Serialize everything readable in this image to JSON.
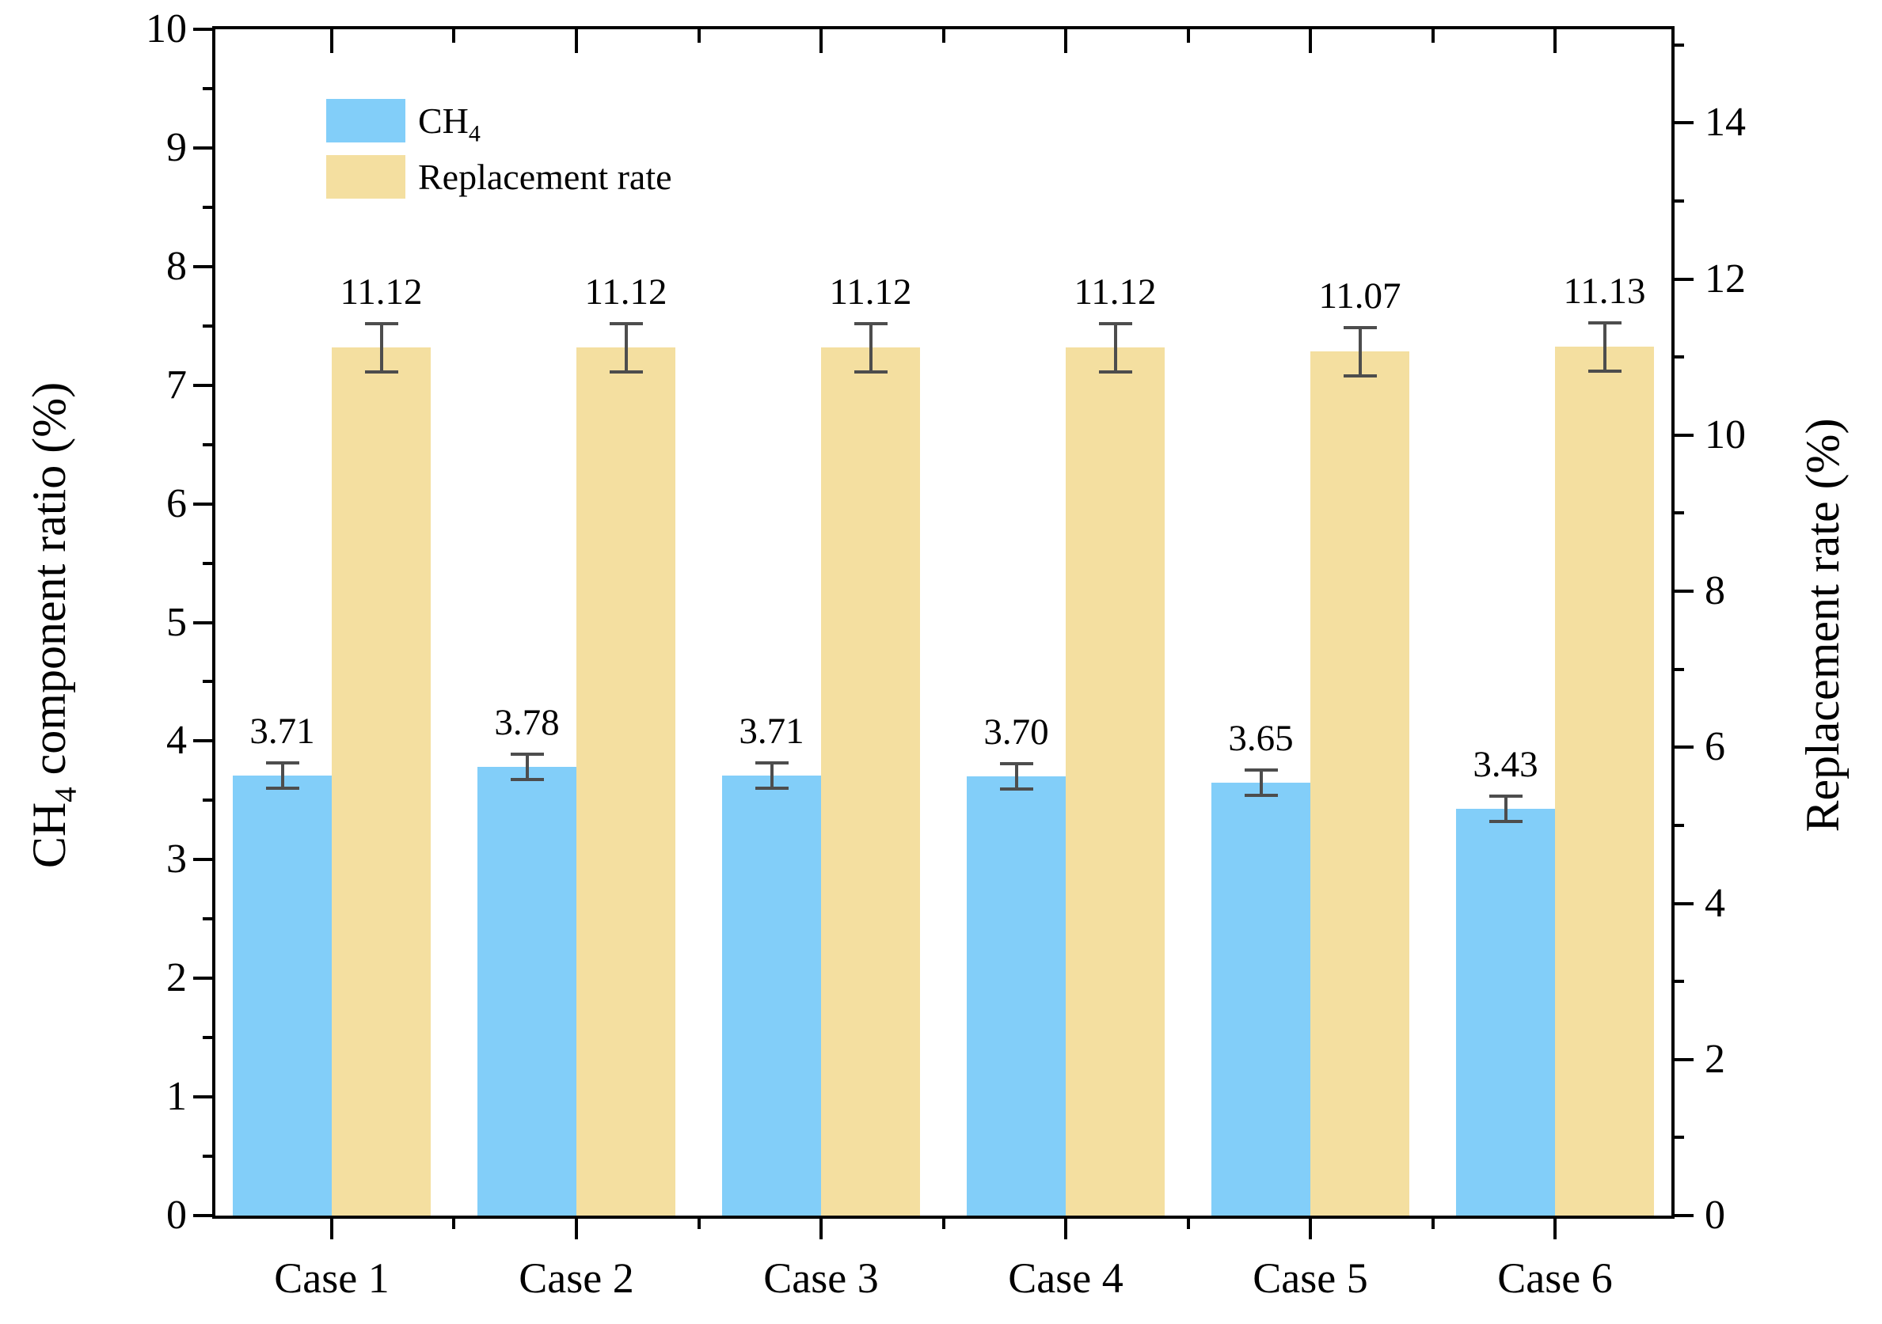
{
  "figure": {
    "background": "#ffffff",
    "text_color": "#000000",
    "spine_color": "#000000",
    "error_bar_color": "#4d4d4d"
  },
  "chart_data": {
    "type": "bar",
    "categories": [
      "Case 1",
      "Case 2",
      "Case 3",
      "Case 4",
      "Case 5",
      "Case 6"
    ],
    "series": [
      {
        "name": "CH4",
        "legend_main": "CH",
        "legend_sub": "4",
        "axis": "left",
        "color": "#82CEF9",
        "values": [
          3.71,
          3.78,
          3.71,
          3.7,
          3.65,
          3.43
        ],
        "value_labels": [
          "3.71",
          "3.78",
          "3.71",
          "3.70",
          "3.65",
          "3.43"
        ],
        "errors": [
          0.12,
          0.12,
          0.12,
          0.12,
          0.12,
          0.12
        ]
      },
      {
        "name": "Replacement rate",
        "legend_main": "Replacement rate",
        "legend_sub": "",
        "axis": "right",
        "color": "#F4DFA0",
        "values": [
          11.12,
          11.12,
          11.12,
          11.12,
          11.07,
          11.13
        ],
        "value_labels": [
          "11.12",
          "11.12",
          "11.12",
          "11.12",
          "11.07",
          "11.13"
        ],
        "errors": [
          0.33,
          0.33,
          0.33,
          0.33,
          0.33,
          0.33
        ]
      }
    ],
    "left_axis": {
      "title_prefix": "CH",
      "title_sub": "4",
      "title_rest": " component ratio (%)",
      "min": 0,
      "max": 10,
      "major_ticks": [
        0,
        1,
        2,
        3,
        4,
        5,
        6,
        7,
        8,
        9,
        10
      ],
      "tick_labels": [
        "0",
        "1",
        "2",
        "3",
        "4",
        "5",
        "6",
        "7",
        "8",
        "9",
        "10"
      ],
      "minor_ticks": [
        0.5,
        1.5,
        2.5,
        3.5,
        4.5,
        5.5,
        6.5,
        7.5,
        8.5,
        9.5
      ]
    },
    "right_axis": {
      "title": "Replacement rate (%)",
      "min": 0,
      "max": 15.2,
      "major_ticks": [
        0,
        2,
        4,
        6,
        8,
        10,
        12,
        14
      ],
      "tick_labels": [
        "0",
        "2",
        "4",
        "6",
        "8",
        "10",
        "12",
        "14"
      ],
      "minor_ticks": [
        1,
        3,
        5,
        7,
        9,
        11,
        13,
        15
      ]
    },
    "legend_position": "top-left",
    "grid": false
  }
}
